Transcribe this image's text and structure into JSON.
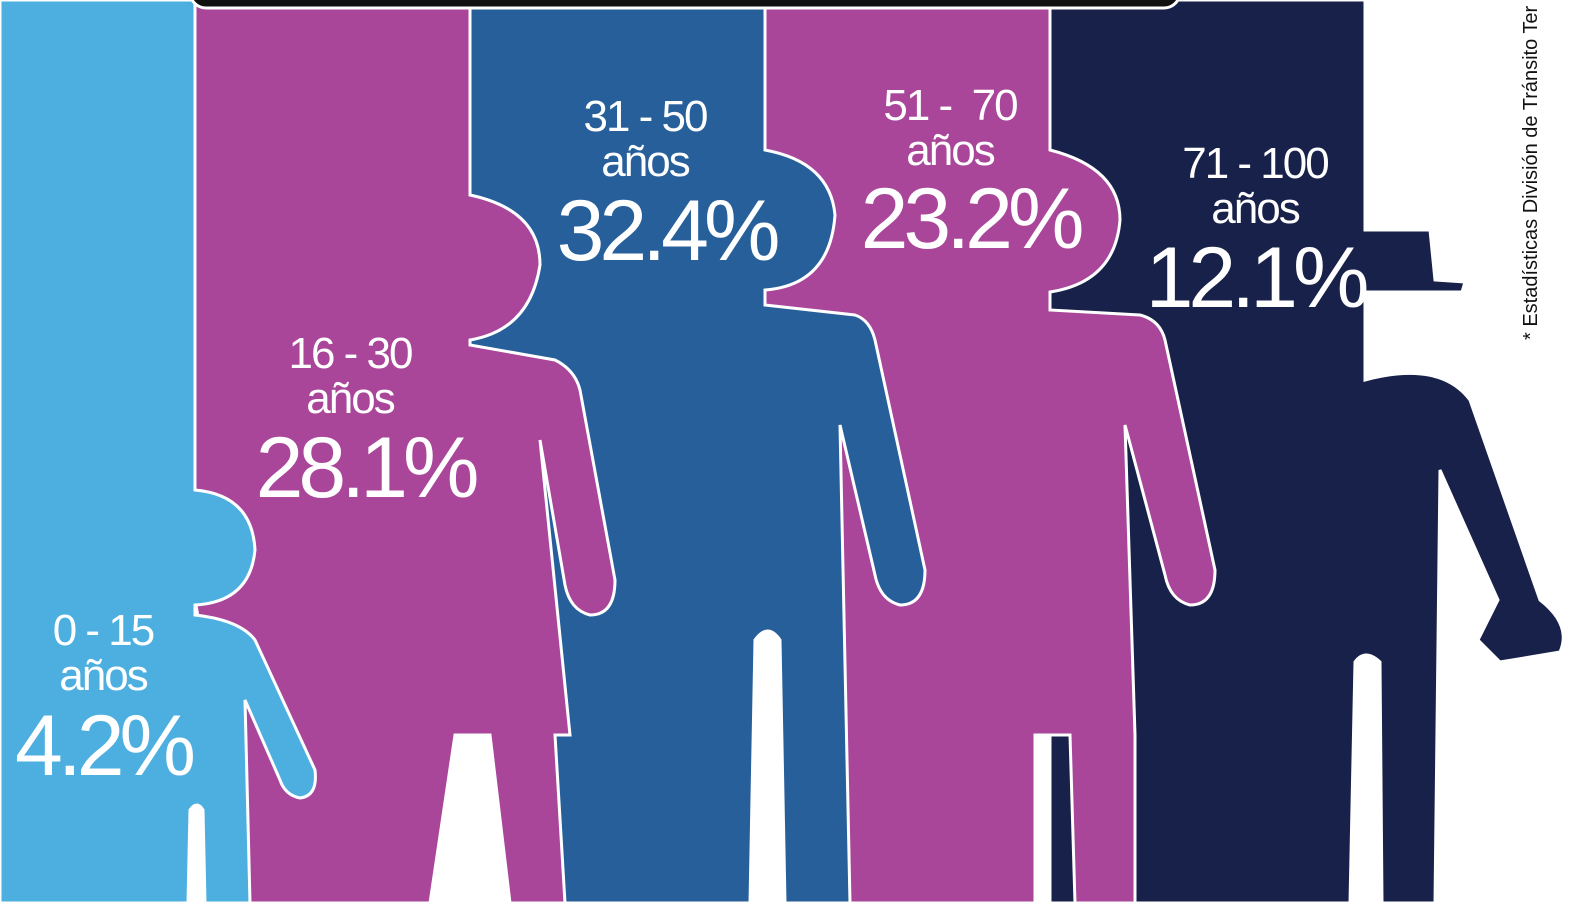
{
  "groups": [
    {
      "range": "0 - 15",
      "unit": "años",
      "share": "4.2%"
    },
    {
      "range": "16 - 30",
      "unit": "años",
      "share": "28.1%"
    },
    {
      "range": "31 - 50",
      "unit": "años",
      "share": "32.4%"
    },
    {
      "range": "51 -  70",
      "unit": "años",
      "share": "23.2%"
    },
    {
      "range": "71 - 100",
      "unit": "años",
      "share": "12.1%"
    }
  ],
  "source": "* Estadísticas División de Tránsito Ter"
}
